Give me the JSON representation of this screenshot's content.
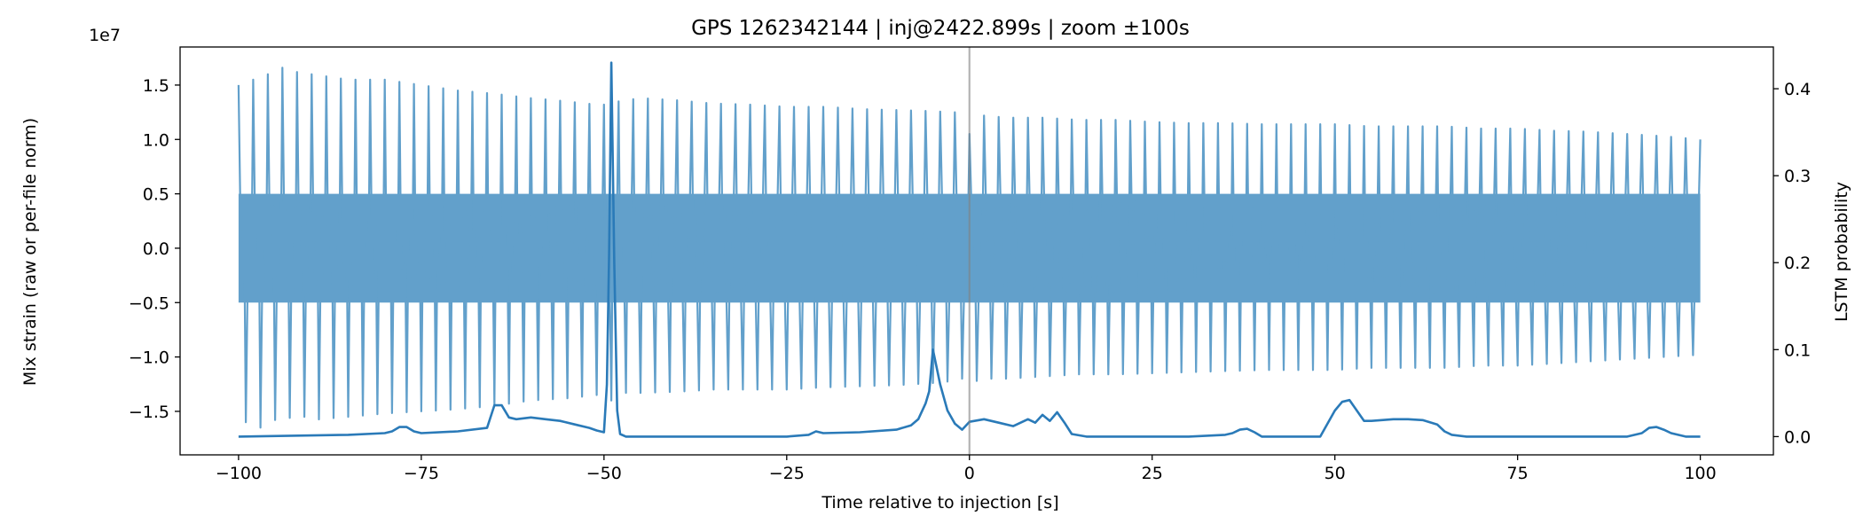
{
  "chart_data": {
    "type": "line",
    "title": "GPS 1262342144 | inj@2422.899s | zoom ±100s",
    "xlabel": "Time relative to injection [s]",
    "ylabel": "Mix strain (raw or per-file norm)",
    "y2label": "LSTM probability",
    "y_offset_text": "1e7",
    "xlim": [
      -108,
      110
    ],
    "ylim": [
      -1.9,
      1.85
    ],
    "y2lim": [
      -0.021,
      0.448
    ],
    "xticks": [
      -100,
      -75,
      -50,
      -25,
      0,
      25,
      50,
      75,
      100
    ],
    "xtick_labels": [
      "−100",
      "−75",
      "−50",
      "−25",
      "0",
      "25",
      "50",
      "75",
      "100"
    ],
    "yticks": [
      -1.5,
      -1.0,
      -0.5,
      0.0,
      0.5,
      1.0,
      1.5
    ],
    "ytick_labels": [
      "−1.5",
      "−1.0",
      "−0.5",
      "0.0",
      "0.5",
      "1.0",
      "1.5"
    ],
    "y2ticks": [
      0.0,
      0.1,
      0.2,
      0.3,
      0.4
    ],
    "y2tick_labels": [
      "0.0",
      "0.1",
      "0.2",
      "0.3",
      "0.4"
    ],
    "injection_line_x": 0,
    "grid": false,
    "series": [
      {
        "axis": "left",
        "color": "#62a0cb",
        "strain_envelope": {
          "x": [
            -100,
            -99,
            -98,
            -97,
            -96,
            -95,
            -94,
            -93,
            -92,
            -91,
            -90,
            -85,
            -80,
            -75,
            -70,
            -65,
            -60,
            -55,
            -51,
            -50,
            -49,
            -48,
            -45,
            -40,
            -35,
            -30,
            -25,
            -20,
            -15,
            -10,
            -5,
            -2,
            -1,
            0,
            1,
            2,
            5,
            10,
            15,
            20,
            25,
            30,
            35,
            40,
            45,
            50,
            55,
            60,
            65,
            70,
            75,
            80,
            85,
            90,
            95,
            100
          ],
          "peak": [
            1.5,
            1.62,
            1.55,
            1.68,
            1.6,
            1.58,
            1.66,
            1.57,
            1.62,
            1.56,
            1.6,
            1.55,
            1.55,
            1.5,
            1.45,
            1.42,
            1.38,
            1.35,
            1.32,
            1.32,
            1.7,
            1.35,
            1.38,
            1.36,
            1.33,
            1.32,
            1.3,
            1.3,
            1.28,
            1.27,
            1.26,
            1.25,
            1.2,
            1.05,
            1.25,
            1.22,
            1.2,
            1.2,
            1.18,
            1.18,
            1.16,
            1.15,
            1.15,
            1.14,
            1.14,
            1.14,
            1.12,
            1.12,
            1.12,
            1.1,
            1.1,
            1.08,
            1.07,
            1.05,
            1.03,
            1.0
          ],
          "trough": [
            -1.5,
            -1.6,
            -1.55,
            -1.65,
            -1.6,
            -1.58,
            -1.62,
            -1.56,
            -1.6,
            -1.55,
            -1.58,
            -1.55,
            -1.52,
            -1.5,
            -1.48,
            -1.45,
            -1.4,
            -1.38,
            -1.35,
            -1.35,
            -1.4,
            -1.33,
            -1.33,
            -1.32,
            -1.3,
            -1.3,
            -1.3,
            -1.28,
            -1.27,
            -1.26,
            -1.24,
            -1.22,
            -1.2,
            -1.15,
            -1.22,
            -1.2,
            -1.2,
            -1.18,
            -1.16,
            -1.16,
            -1.15,
            -1.14,
            -1.13,
            -1.12,
            -1.12,
            -1.12,
            -1.1,
            -1.1,
            -1.1,
            -1.08,
            -1.08,
            -1.06,
            -1.04,
            -1.02,
            -1.0,
            -0.98
          ],
          "dense_band": [
            -0.5,
            0.5
          ]
        }
      },
      {
        "axis": "right",
        "color": "#2a7ab8",
        "x": [
          -100,
          -85,
          -80,
          -79,
          -78,
          -77,
          -76,
          -75,
          -70,
          -66,
          -65,
          -64,
          -63,
          -62,
          -60,
          -58,
          -56,
          -54,
          -52,
          -51,
          -50,
          -49.6,
          -49.3,
          -49.0,
          -48.6,
          -48.2,
          -47.8,
          -47,
          -46,
          -40,
          -35,
          -30,
          -25,
          -22,
          -21,
          -20,
          -15,
          -10,
          -8,
          -7,
          -6,
          -5.5,
          -5,
          -4,
          -3,
          -2,
          -1,
          0,
          2,
          4,
          6,
          8,
          9,
          10,
          11,
          12,
          13,
          14,
          16,
          20,
          25,
          30,
          35,
          36,
          37,
          38,
          39,
          40,
          45,
          48,
          50,
          51,
          52,
          53,
          54,
          55,
          58,
          60,
          62,
          64,
          65,
          66,
          68,
          70,
          80,
          90,
          92,
          93,
          94,
          95,
          96,
          98,
          100
        ],
        "values": [
          0.0,
          0.002,
          0.004,
          0.006,
          0.011,
          0.011,
          0.006,
          0.004,
          0.006,
          0.01,
          0.036,
          0.036,
          0.022,
          0.02,
          0.022,
          0.02,
          0.018,
          0.014,
          0.01,
          0.007,
          0.005,
          0.06,
          0.21,
          0.43,
          0.2,
          0.03,
          0.003,
          0.0,
          0.0,
          0.0,
          0.0,
          0.0,
          0.0,
          0.002,
          0.006,
          0.004,
          0.005,
          0.008,
          0.013,
          0.02,
          0.038,
          0.052,
          0.1,
          0.06,
          0.03,
          0.015,
          0.008,
          0.017,
          0.02,
          0.016,
          0.012,
          0.02,
          0.016,
          0.025,
          0.018,
          0.028,
          0.016,
          0.003,
          0.0,
          0.0,
          0.0,
          0.0,
          0.002,
          0.004,
          0.008,
          0.009,
          0.005,
          0.0,
          0.0,
          0.0,
          0.03,
          0.04,
          0.042,
          0.03,
          0.018,
          0.018,
          0.02,
          0.02,
          0.019,
          0.014,
          0.006,
          0.002,
          0.0,
          0.0,
          0.0,
          0.0,
          0.004,
          0.01,
          0.011,
          0.008,
          0.004,
          0.0,
          0.0
        ]
      }
    ]
  }
}
